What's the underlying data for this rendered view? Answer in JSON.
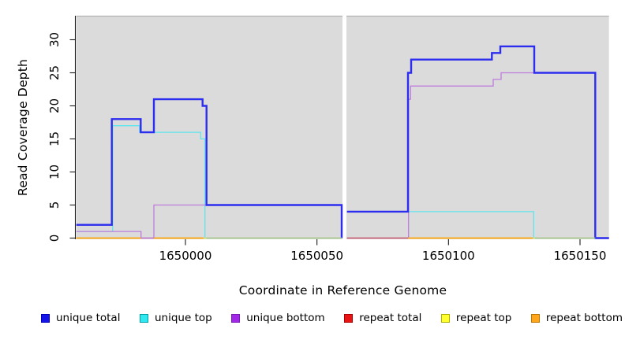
{
  "figure": {
    "x_axis_title": "Coordinate in Reference Genome",
    "y_axis_title": "Read Coverage Depth"
  },
  "chart_data": {
    "type": "line",
    "subtype": "step-read-coverage",
    "title": "",
    "xlabel": "Coordinate in Reference Genome",
    "ylabel": "Read Coverage Depth",
    "x_domain": [
      1649958.5,
      1650161
    ],
    "y_domain": [
      0,
      33.5
    ],
    "grid": false,
    "legend_position": "bottom",
    "gap": {
      "from": 1650059.7,
      "to": 1650061.2
    },
    "x_axis": {
      "ticks": [
        1650000,
        1650050,
        1650100,
        1650150
      ],
      "tick_labels": [
        "1650000",
        "1650050",
        "1650100",
        "1650150"
      ]
    },
    "y_axis": {
      "ticks": [
        0,
        5,
        10,
        15,
        20,
        25,
        30
      ],
      "tick_labels": [
        "0",
        "5",
        "10",
        "15",
        "20",
        "25",
        "30"
      ]
    },
    "series": [
      {
        "name": "unique total",
        "color": "#2d2def",
        "width": 2.4,
        "steps": [
          [
            [
              1649958.5,
              2
            ],
            [
              1649972,
              18
            ],
            [
              1649983,
              16
            ],
            [
              1649988,
              21
            ],
            [
              1650006.5,
              20
            ],
            [
              1650008,
              5
            ],
            [
              1650059.4,
              0
            ]
          ],
          [
            [
              1650061.4,
              4
            ],
            [
              1650084.6,
              25
            ],
            [
              1650085.8,
              27
            ],
            [
              1650116.5,
              28
            ],
            [
              1650119.7,
              29
            ],
            [
              1650132.6,
              25
            ],
            [
              1650155.8,
              0
            ],
            [
              1650161,
              0
            ]
          ]
        ]
      },
      {
        "name": "unique top",
        "color": "#5fe5ec",
        "width": 1.3,
        "steps": [
          [
            [
              1649958.5,
              1
            ],
            [
              1649972.3,
              17
            ],
            [
              1649982.5,
              16
            ],
            [
              1650005.8,
              15
            ],
            [
              1650007.4,
              0
            ]
          ],
          [
            [
              1650061.4,
              4
            ],
            [
              1650132.4,
              0
            ]
          ]
        ]
      },
      {
        "name": "unique bottom",
        "color": "#bd7cdc",
        "width": 1.3,
        "steps": [
          [
            [
              1649958.5,
              1
            ],
            [
              1649983.1,
              0
            ],
            [
              1649988,
              5
            ],
            [
              1650059.4,
              0
            ]
          ],
          [
            [
              1650061.4,
              0
            ],
            [
              1650084.8,
              21
            ],
            [
              1650085.6,
              23
            ],
            [
              1650117,
              24
            ],
            [
              1650120,
              25
            ],
            [
              1650155.8,
              0
            ]
          ]
        ]
      },
      {
        "name": "repeat total",
        "color": "#e81414",
        "width": 1.3,
        "steps": [
          [
            [
              1649958.5,
              0
            ],
            [
              1650059.4,
              0
            ]
          ],
          [
            [
              1650061.4,
              0
            ],
            [
              1650161,
              0
            ]
          ]
        ]
      },
      {
        "name": "repeat top",
        "color": "#ffff2e",
        "width": 1.3,
        "steps": [
          [
            [
              1649958.5,
              0
            ],
            [
              1650059.4,
              0
            ]
          ],
          [
            [
              1650061.4,
              0
            ],
            [
              1650161,
              0
            ]
          ]
        ]
      },
      {
        "name": "repeat bottom",
        "color": "#ffa500",
        "width": 1.3,
        "steps": [
          [
            [
              1649958.5,
              0
            ],
            [
              1650059.4,
              0
            ]
          ],
          [
            [
              1650061.4,
              0
            ],
            [
              1650161,
              0
            ]
          ]
        ]
      }
    ],
    "baseline_overlay_segments": [
      {
        "color": "#ffa500",
        "from": 1649958.5,
        "to": 1649983.1
      },
      {
        "color": "#bd7cdc",
        "from": 1649983.1,
        "to": 1649988
      },
      {
        "color": "#ffa500",
        "from": 1649988,
        "to": 1650006.9
      },
      {
        "color": "#9ccf9c",
        "from": 1650007.9,
        "to": 1650059.4
      },
      {
        "color": "#c4607c",
        "from": 1650061.4,
        "to": 1650084.6
      },
      {
        "color": "#ffa500",
        "from": 1650084.6,
        "to": 1650132.0
      },
      {
        "color": "#9ccf9c",
        "from": 1650132.8,
        "to": 1650155.8
      }
    ]
  },
  "legend": {
    "items": [
      {
        "label": "unique total",
        "fill": "#1414e8",
        "border": "#0000bb"
      },
      {
        "label": "unique top",
        "fill": "#2fe8f0",
        "border": "#00a0aa"
      },
      {
        "label": "unique bottom",
        "fill": "#a228e8",
        "border": "#7a1bb8"
      },
      {
        "label": "repeat total",
        "fill": "#e81414",
        "border": "#aa0000"
      },
      {
        "label": "repeat top",
        "fill": "#ffff2e",
        "border": "#b0b000"
      },
      {
        "label": "repeat bottom",
        "fill": "#ffa519",
        "border": "#bb7700"
      }
    ]
  },
  "colors": {
    "plot_bg": "#dbdbdb",
    "plot_top_edge": "#b3b3b3",
    "axis": "#1a1a1a",
    "text": "#000000"
  }
}
